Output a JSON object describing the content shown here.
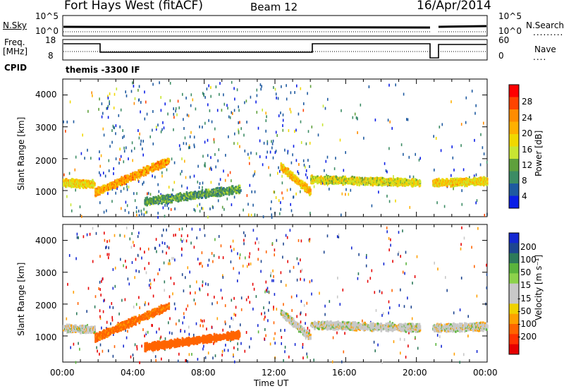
{
  "header": {
    "title": "Fort Hays West (fitACF)",
    "beam": "Beam 12",
    "date": "16/Apr/2014"
  },
  "aux_panels": {
    "nsky_label": "N.Sky",
    "nsky_ticks": [
      "10^5",
      "10^0"
    ],
    "nsearch_label": "N.Search",
    "nsearch_ticks": [
      "10^5",
      "10^0"
    ],
    "freq_label_line1": "Freq.",
    "freq_label_line2": "[MHz]",
    "freq_ticks": [
      "18",
      "8"
    ],
    "nave_label": "Nave",
    "nave_ticks": [
      "60",
      "0"
    ],
    "cpid_label": "CPID",
    "cpid_text": "themis -3300 IF"
  },
  "axes": {
    "ylabel": "Slant Range [km]",
    "yticks": [
      "4000",
      "3000",
      "2000",
      "1000"
    ],
    "xticks": [
      "00:00",
      "04:00",
      "08:00",
      "12:00",
      "16:00",
      "20:00",
      "00:00"
    ],
    "xlabel": "Time UT"
  },
  "colorbars": {
    "power": {
      "label": "Power [dB]",
      "ticks": [
        "28",
        "24",
        "20",
        "16",
        "12",
        "8",
        "4"
      ],
      "colors": [
        "#ff0000",
        "#ff4400",
        "#ff8c00",
        "#ffb000",
        "#f0d800",
        "#c8e632",
        "#5fa03c",
        "#3c8c64",
        "#1e5aa0",
        "#0a1ee6"
      ]
    },
    "velocity": {
      "label": "Velocity [m s⁻¹]",
      "ticks": [
        "200",
        "100",
        "50",
        "15",
        "-15",
        "-50",
        "-100",
        "-200"
      ],
      "colors": [
        "#1428d2",
        "#1e4690",
        "#2d7a5a",
        "#5ab43c",
        "#8cd24b",
        "#c8c8c8",
        "#c8c8c8",
        "#f0d200",
        "#ffa000",
        "#ff6400",
        "#ff3200",
        "#e60000"
      ]
    }
  },
  "chart_data": [
    {
      "type": "heatmap",
      "title": "Power",
      "xlabel": "Time UT",
      "ylabel": "Slant Range [km]",
      "xlim": [
        0,
        24
      ],
      "ylim": [
        180,
        4500
      ],
      "colorbar_label": "Power [dB]",
      "bands": [
        {
          "t_start": 0.0,
          "t_end": 1.8,
          "range_start": 1300,
          "range_end": 1250,
          "value": 18
        },
        {
          "t_start": 1.8,
          "t_end": 6.0,
          "range_start": 1000,
          "range_end": 2000,
          "value": 22
        },
        {
          "t_start": 4.6,
          "t_end": 10.0,
          "range_start": 700,
          "range_end": 1100,
          "value": 10
        },
        {
          "t_start": 12.3,
          "t_end": 14.0,
          "range_start": 1800,
          "range_end": 1000,
          "value": 20
        },
        {
          "t_start": 14.0,
          "t_end": 20.2,
          "range_start": 1400,
          "range_end": 1300,
          "value": 16
        },
        {
          "t_start": 20.9,
          "t_end": 24.0,
          "range_start": 1300,
          "range_end": 1350,
          "value": 18
        }
      ]
    },
    {
      "type": "heatmap",
      "title": "Velocity",
      "xlabel": "Time UT",
      "ylabel": "Slant Range [km]",
      "xlim": [
        0,
        24
      ],
      "ylim": [
        180,
        4500
      ],
      "colorbar_label": "Velocity [m s⁻¹]",
      "bands": [
        {
          "t_start": 0.0,
          "t_end": 1.8,
          "range_start": 1300,
          "range_end": 1250,
          "value": 0
        },
        {
          "t_start": 1.8,
          "t_end": 6.0,
          "range_start": 1000,
          "range_end": 2000,
          "value": -60
        },
        {
          "t_start": 4.6,
          "t_end": 10.0,
          "range_start": 700,
          "range_end": 1100,
          "value": -80
        },
        {
          "t_start": 12.3,
          "t_end": 14.0,
          "range_start": 1800,
          "range_end": 1000,
          "value": 0
        },
        {
          "t_start": 14.0,
          "t_end": 20.2,
          "range_start": 1400,
          "range_end": 1300,
          "value": 0
        },
        {
          "t_start": 20.9,
          "t_end": 24.0,
          "range_start": 1300,
          "range_end": 1350,
          "value": 0
        }
      ]
    }
  ]
}
